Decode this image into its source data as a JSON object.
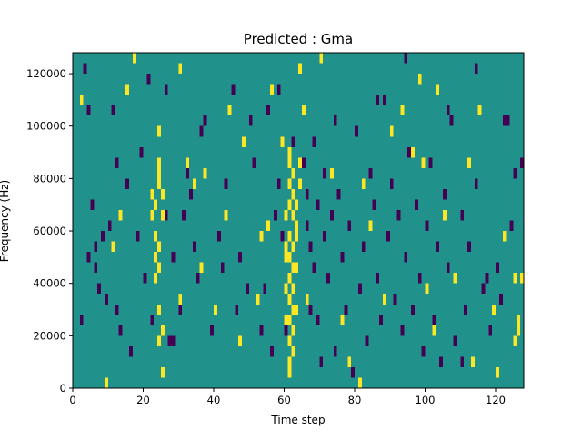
{
  "chart_data": {
    "type": "heatmap",
    "title": "Predicted : Gma",
    "xlabel": "Time step",
    "ylabel": "Frequency (Hz)",
    "xlim": [
      0,
      128
    ],
    "ylim": [
      0,
      128000
    ],
    "x_ticks": [
      0,
      20,
      40,
      60,
      80,
      100,
      120
    ],
    "x_tick_labels": [
      "0",
      "20",
      "40",
      "60",
      "80",
      "100",
      "120"
    ],
    "y_ticks": [
      0,
      20000,
      40000,
      60000,
      80000,
      100000,
      120000
    ],
    "y_tick_labels": [
      "0",
      "20000",
      "40000",
      "60000",
      "80000",
      "100000",
      "120000"
    ],
    "grid": false,
    "legend": "none",
    "colors": {
      "background_level": "#21918c",
      "low_level": "#440154",
      "high_level": "#fde725"
    },
    "levels": {
      "low": 0,
      "background": 0.5,
      "high": 1
    },
    "frequency_bin_hz": 4000,
    "cells": [
      [
        24,
        84000,
        1
      ],
      [
        24,
        80000,
        1
      ],
      [
        24,
        76000,
        1
      ],
      [
        25,
        72000,
        1
      ],
      [
        23,
        68000,
        1
      ],
      [
        25,
        64000,
        1
      ],
      [
        23,
        56000,
        1
      ],
      [
        24,
        52000,
        1
      ],
      [
        23,
        48000,
        1
      ],
      [
        24,
        44000,
        1
      ],
      [
        23,
        40000,
        1
      ],
      [
        24,
        28000,
        1
      ],
      [
        25,
        20000,
        1
      ],
      [
        24,
        16000,
        1
      ],
      [
        25,
        4000,
        1
      ],
      [
        61,
        88000,
        1
      ],
      [
        61,
        84000,
        1
      ],
      [
        62,
        80000,
        1
      ],
      [
        61,
        76000,
        1
      ],
      [
        62,
        72000,
        1
      ],
      [
        61,
        68000,
        1
      ],
      [
        62,
        64000,
        1
      ],
      [
        63,
        60000,
        1
      ],
      [
        61,
        56000,
        1
      ],
      [
        62,
        52000,
        1
      ],
      [
        61,
        48000,
        1
      ],
      [
        62,
        44000,
        1
      ],
      [
        61,
        40000,
        1
      ],
      [
        62,
        36000,
        1
      ],
      [
        61,
        32000,
        1
      ],
      [
        62,
        28000,
        1
      ],
      [
        61,
        24000,
        1
      ],
      [
        62,
        20000,
        1
      ],
      [
        61,
        16000,
        1
      ],
      [
        62,
        12000,
        1
      ],
      [
        61,
        8000,
        1
      ],
      [
        61,
        4000,
        1
      ],
      [
        63,
        68000,
        1
      ],
      [
        60,
        64000,
        1
      ],
      [
        63,
        56000,
        1
      ],
      [
        60,
        52000,
        1
      ],
      [
        63,
        44000,
        1
      ],
      [
        59,
        92000,
        1
      ],
      [
        64,
        84000,
        1
      ],
      [
        60,
        36000,
        1
      ],
      [
        63,
        28000,
        1
      ],
      [
        60,
        24000,
        1
      ],
      [
        64,
        120000,
        1
      ],
      [
        65,
        104000,
        1
      ],
      [
        64,
        76000,
        1
      ],
      [
        2,
        108000,
        1
      ],
      [
        9,
        0,
        1
      ],
      [
        15,
        112000,
        1
      ],
      [
        17,
        124000,
        1
      ],
      [
        22,
        64000,
        1
      ],
      [
        22,
        72000,
        1
      ],
      [
        24,
        96000,
        1
      ],
      [
        30,
        120000,
        1
      ],
      [
        32,
        84000,
        1
      ],
      [
        34,
        76000,
        1
      ],
      [
        40,
        28000,
        1
      ],
      [
        43,
        64000,
        1
      ],
      [
        44,
        104000,
        1
      ],
      [
        47,
        16000,
        1
      ],
      [
        52,
        32000,
        1
      ],
      [
        53,
        56000,
        1
      ],
      [
        56,
        112000,
        1
      ],
      [
        60,
        48000,
        1
      ],
      [
        73,
        80000,
        1
      ],
      [
        76,
        24000,
        1
      ],
      [
        78,
        8000,
        1
      ],
      [
        81,
        0,
        1
      ],
      [
        84,
        60000,
        1
      ],
      [
        88,
        32000,
        1
      ],
      [
        93,
        104000,
        1
      ],
      [
        99,
        84000,
        1
      ],
      [
        100,
        36000,
        1
      ],
      [
        102,
        20000,
        1
      ],
      [
        105,
        64000,
        1
      ],
      [
        108,
        40000,
        1
      ],
      [
        112,
        84000,
        1
      ],
      [
        115,
        104000,
        1
      ],
      [
        119,
        28000,
        1
      ],
      [
        122,
        56000,
        1
      ],
      [
        125,
        40000,
        1
      ],
      [
        126,
        20000,
        1
      ],
      [
        11,
        52000,
        1
      ],
      [
        30,
        32000,
        1
      ],
      [
        36,
        44000,
        1
      ],
      [
        48,
        92000,
        1
      ],
      [
        70,
        124000,
        1
      ],
      [
        96,
        88000,
        1
      ],
      [
        103,
        112000,
        1
      ],
      [
        120,
        4000,
        1
      ],
      [
        126,
        24000,
        1
      ],
      [
        125,
        16000,
        1
      ],
      [
        127,
        40000,
        1
      ],
      [
        13,
        64000,
        1
      ],
      [
        37,
        80000,
        1
      ],
      [
        55,
        60000,
        1
      ],
      [
        66,
        32000,
        1
      ],
      [
        90,
        96000,
        1
      ],
      [
        113,
        8000,
        1
      ],
      [
        82,
        76000,
        1
      ],
      [
        98,
        116000,
        1
      ],
      [
        3,
        120000,
        0
      ],
      [
        4,
        104000,
        0
      ],
      [
        5,
        68000,
        0
      ],
      [
        6,
        52000,
        0
      ],
      [
        6,
        44000,
        0
      ],
      [
        7,
        36000,
        0
      ],
      [
        8,
        56000,
        0
      ],
      [
        10,
        60000,
        0
      ],
      [
        12,
        28000,
        0
      ],
      [
        12,
        84000,
        0
      ],
      [
        13,
        20000,
        0
      ],
      [
        16,
        12000,
        0
      ],
      [
        18,
        56000,
        0
      ],
      [
        20,
        40000,
        0
      ],
      [
        21,
        116000,
        0
      ],
      [
        22,
        24000,
        0
      ],
      [
        26,
        64000,
        0
      ],
      [
        27,
        16000,
        0
      ],
      [
        28,
        48000,
        0
      ],
      [
        30,
        28000,
        0
      ],
      [
        32,
        80000,
        0
      ],
      [
        33,
        72000,
        0
      ],
      [
        34,
        52000,
        0
      ],
      [
        35,
        40000,
        0
      ],
      [
        37,
        100000,
        0
      ],
      [
        39,
        20000,
        0
      ],
      [
        41,
        56000,
        0
      ],
      [
        43,
        76000,
        0
      ],
      [
        45,
        112000,
        0
      ],
      [
        47,
        48000,
        0
      ],
      [
        49,
        36000,
        0
      ],
      [
        51,
        84000,
        0
      ],
      [
        53,
        20000,
        0
      ],
      [
        55,
        104000,
        0
      ],
      [
        57,
        64000,
        0
      ],
      [
        56,
        12000,
        0
      ],
      [
        58,
        76000,
        0
      ],
      [
        59,
        56000,
        0
      ],
      [
        60,
        20000,
        0
      ],
      [
        65,
        84000,
        0
      ],
      [
        66,
        72000,
        0
      ],
      [
        66,
        60000,
        0
      ],
      [
        67,
        52000,
        0
      ],
      [
        67,
        28000,
        0
      ],
      [
        68,
        92000,
        0
      ],
      [
        68,
        44000,
        0
      ],
      [
        69,
        68000,
        0
      ],
      [
        69,
        24000,
        0
      ],
      [
        70,
        8000,
        0
      ],
      [
        71,
        56000,
        0
      ],
      [
        71,
        80000,
        0
      ],
      [
        72,
        40000,
        0
      ],
      [
        73,
        64000,
        0
      ],
      [
        74,
        12000,
        0
      ],
      [
        75,
        72000,
        0
      ],
      [
        76,
        48000,
        0
      ],
      [
        77,
        28000,
        0
      ],
      [
        78,
        60000,
        0
      ],
      [
        79,
        4000,
        0
      ],
      [
        80,
        96000,
        0
      ],
      [
        81,
        36000,
        0
      ],
      [
        82,
        52000,
        0
      ],
      [
        83,
        16000,
        0
      ],
      [
        84,
        80000,
        0
      ],
      [
        85,
        68000,
        0
      ],
      [
        86,
        40000,
        0
      ],
      [
        87,
        24000,
        0
      ],
      [
        88,
        108000,
        0
      ],
      [
        89,
        56000,
        0
      ],
      [
        90,
        76000,
        0
      ],
      [
        91,
        32000,
        0
      ],
      [
        92,
        64000,
        0
      ],
      [
        93,
        20000,
        0
      ],
      [
        94,
        48000,
        0
      ],
      [
        95,
        88000,
        0
      ],
      [
        96,
        28000,
        0
      ],
      [
        97,
        68000,
        0
      ],
      [
        98,
        40000,
        0
      ],
      [
        99,
        12000,
        0
      ],
      [
        100,
        60000,
        0
      ],
      [
        101,
        84000,
        0
      ],
      [
        102,
        24000,
        0
      ],
      [
        103,
        52000,
        0
      ],
      [
        104,
        8000,
        0
      ],
      [
        105,
        72000,
        0
      ],
      [
        106,
        44000,
        0
      ],
      [
        107,
        100000,
        0
      ],
      [
        108,
        16000,
        0
      ],
      [
        110,
        64000,
        0
      ],
      [
        111,
        28000,
        0
      ],
      [
        112,
        52000,
        0
      ],
      [
        114,
        76000,
        0
      ],
      [
        116,
        36000,
        0
      ],
      [
        118,
        20000,
        0
      ],
      [
        120,
        44000,
        0
      ],
      [
        122,
        100000,
        0
      ],
      [
        124,
        60000,
        0
      ],
      [
        125,
        80000,
        0
      ],
      [
        127,
        84000,
        0
      ],
      [
        121,
        32000,
        0
      ],
      [
        123,
        100000,
        0
      ],
      [
        110,
        8000,
        0
      ],
      [
        117,
        40000,
        0
      ],
      [
        9,
        32000,
        0
      ],
      [
        15,
        76000,
        0
      ],
      [
        19,
        88000,
        0
      ],
      [
        28,
        16000,
        0
      ],
      [
        31,
        64000,
        0
      ],
      [
        42,
        44000,
        0
      ],
      [
        46,
        28000,
        0
      ],
      [
        50,
        100000,
        0
      ],
      [
        54,
        36000,
        0
      ],
      [
        58,
        112000,
        0
      ],
      [
        62,
        92000,
        0
      ],
      [
        74,
        100000,
        0
      ],
      [
        86,
        108000,
        0
      ],
      [
        94,
        124000,
        0
      ],
      [
        106,
        104000,
        0
      ],
      [
        114,
        120000,
        0
      ],
      [
        2,
        24000,
        0
      ],
      [
        4,
        48000,
        0
      ],
      [
        11,
        104000,
        0
      ],
      [
        26,
        112000,
        0
      ],
      [
        36,
        96000,
        0
      ]
    ]
  }
}
